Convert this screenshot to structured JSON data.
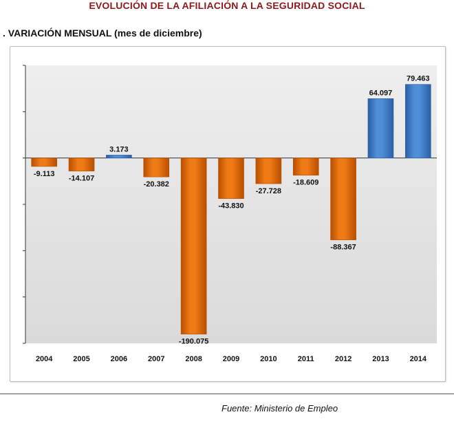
{
  "header": {
    "title": "EVOLUCIÓN DE LA AFILIACIÓN A LA SEGURIDAD SOCIAL",
    "subtitle": ". VARIACIÓN MENSUAL (mes de diciembre)"
  },
  "footer": {
    "source": "Fuente: Ministerio de Empleo"
  },
  "chart_data": {
    "type": "bar",
    "categories": [
      "2004",
      "2005",
      "2006",
      "2007",
      "2008",
      "2009",
      "2010",
      "2011",
      "2012",
      "2013",
      "2014"
    ],
    "values": [
      -9113,
      -14107,
      3173,
      -20382,
      -190075,
      -43830,
      -27728,
      -18609,
      -88367,
      64097,
      79463
    ],
    "data_labels": [
      "-9.113",
      "-14.107",
      "3.173",
      "-20.382",
      "-190.075",
      "-43.830",
      "-27.728",
      "-18.609",
      "-88.367",
      "64.097",
      "79.463"
    ],
    "ylim": [
      -200000,
      100000
    ],
    "ytick_step": 50000,
    "show_ytick_labels": false,
    "grid": false,
    "colors": {
      "negative": "#f07a16",
      "negative_dark": "#b84f00",
      "positive": "#4f8fd8",
      "positive_dark": "#2a5fa6",
      "plot_background": "#e6e6e6",
      "axis": "#333333"
    }
  }
}
